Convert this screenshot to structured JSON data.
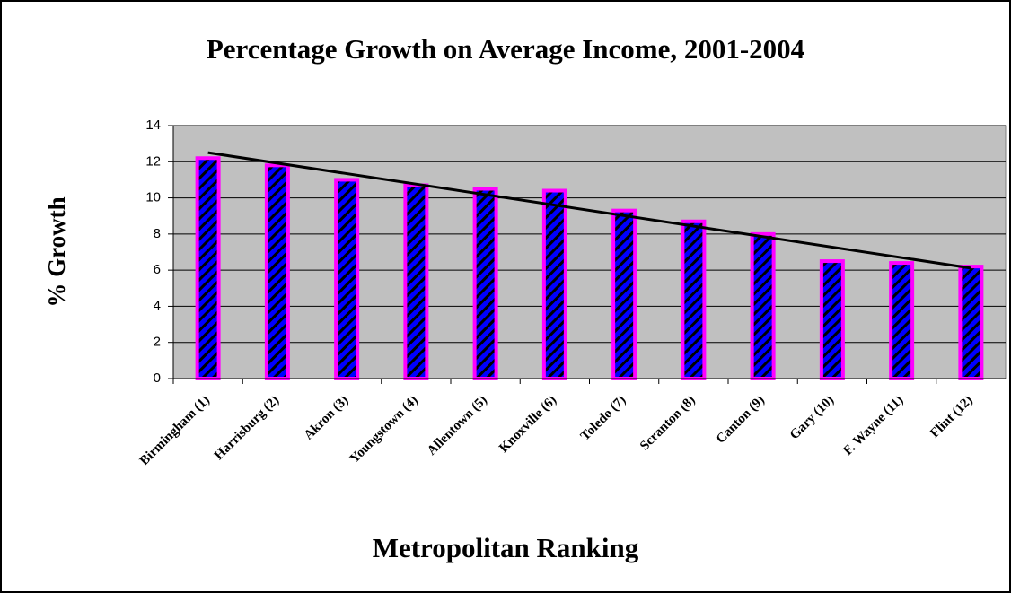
{
  "chart_data": {
    "type": "bar",
    "title": "Percentage Growth on Average Income, 2001-2004",
    "x_label": "Metropolitan Ranking",
    "y_label": "% Growth",
    "categories": [
      "Birmingham (1)",
      "Harrisburg (2)",
      "Akron (3)",
      "Youngstown (4)",
      "Allentown (5)",
      "Knoxville (6)",
      "Toledo (7)",
      "Scranton (8)",
      "Canton (9)",
      "Gary (10)",
      "F. Wayne (11)",
      "Flint (12)"
    ],
    "values": [
      12.2,
      11.8,
      11.0,
      10.7,
      10.5,
      10.4,
      9.3,
      8.7,
      8.0,
      6.5,
      6.4,
      6.2
    ],
    "color": "#ff00ff",
    "ylim": [
      0,
      14
    ],
    "yticks": [
      0,
      2,
      4,
      6,
      8,
      10,
      12,
      14
    ],
    "grid": true,
    "trendline": "linear"
  }
}
